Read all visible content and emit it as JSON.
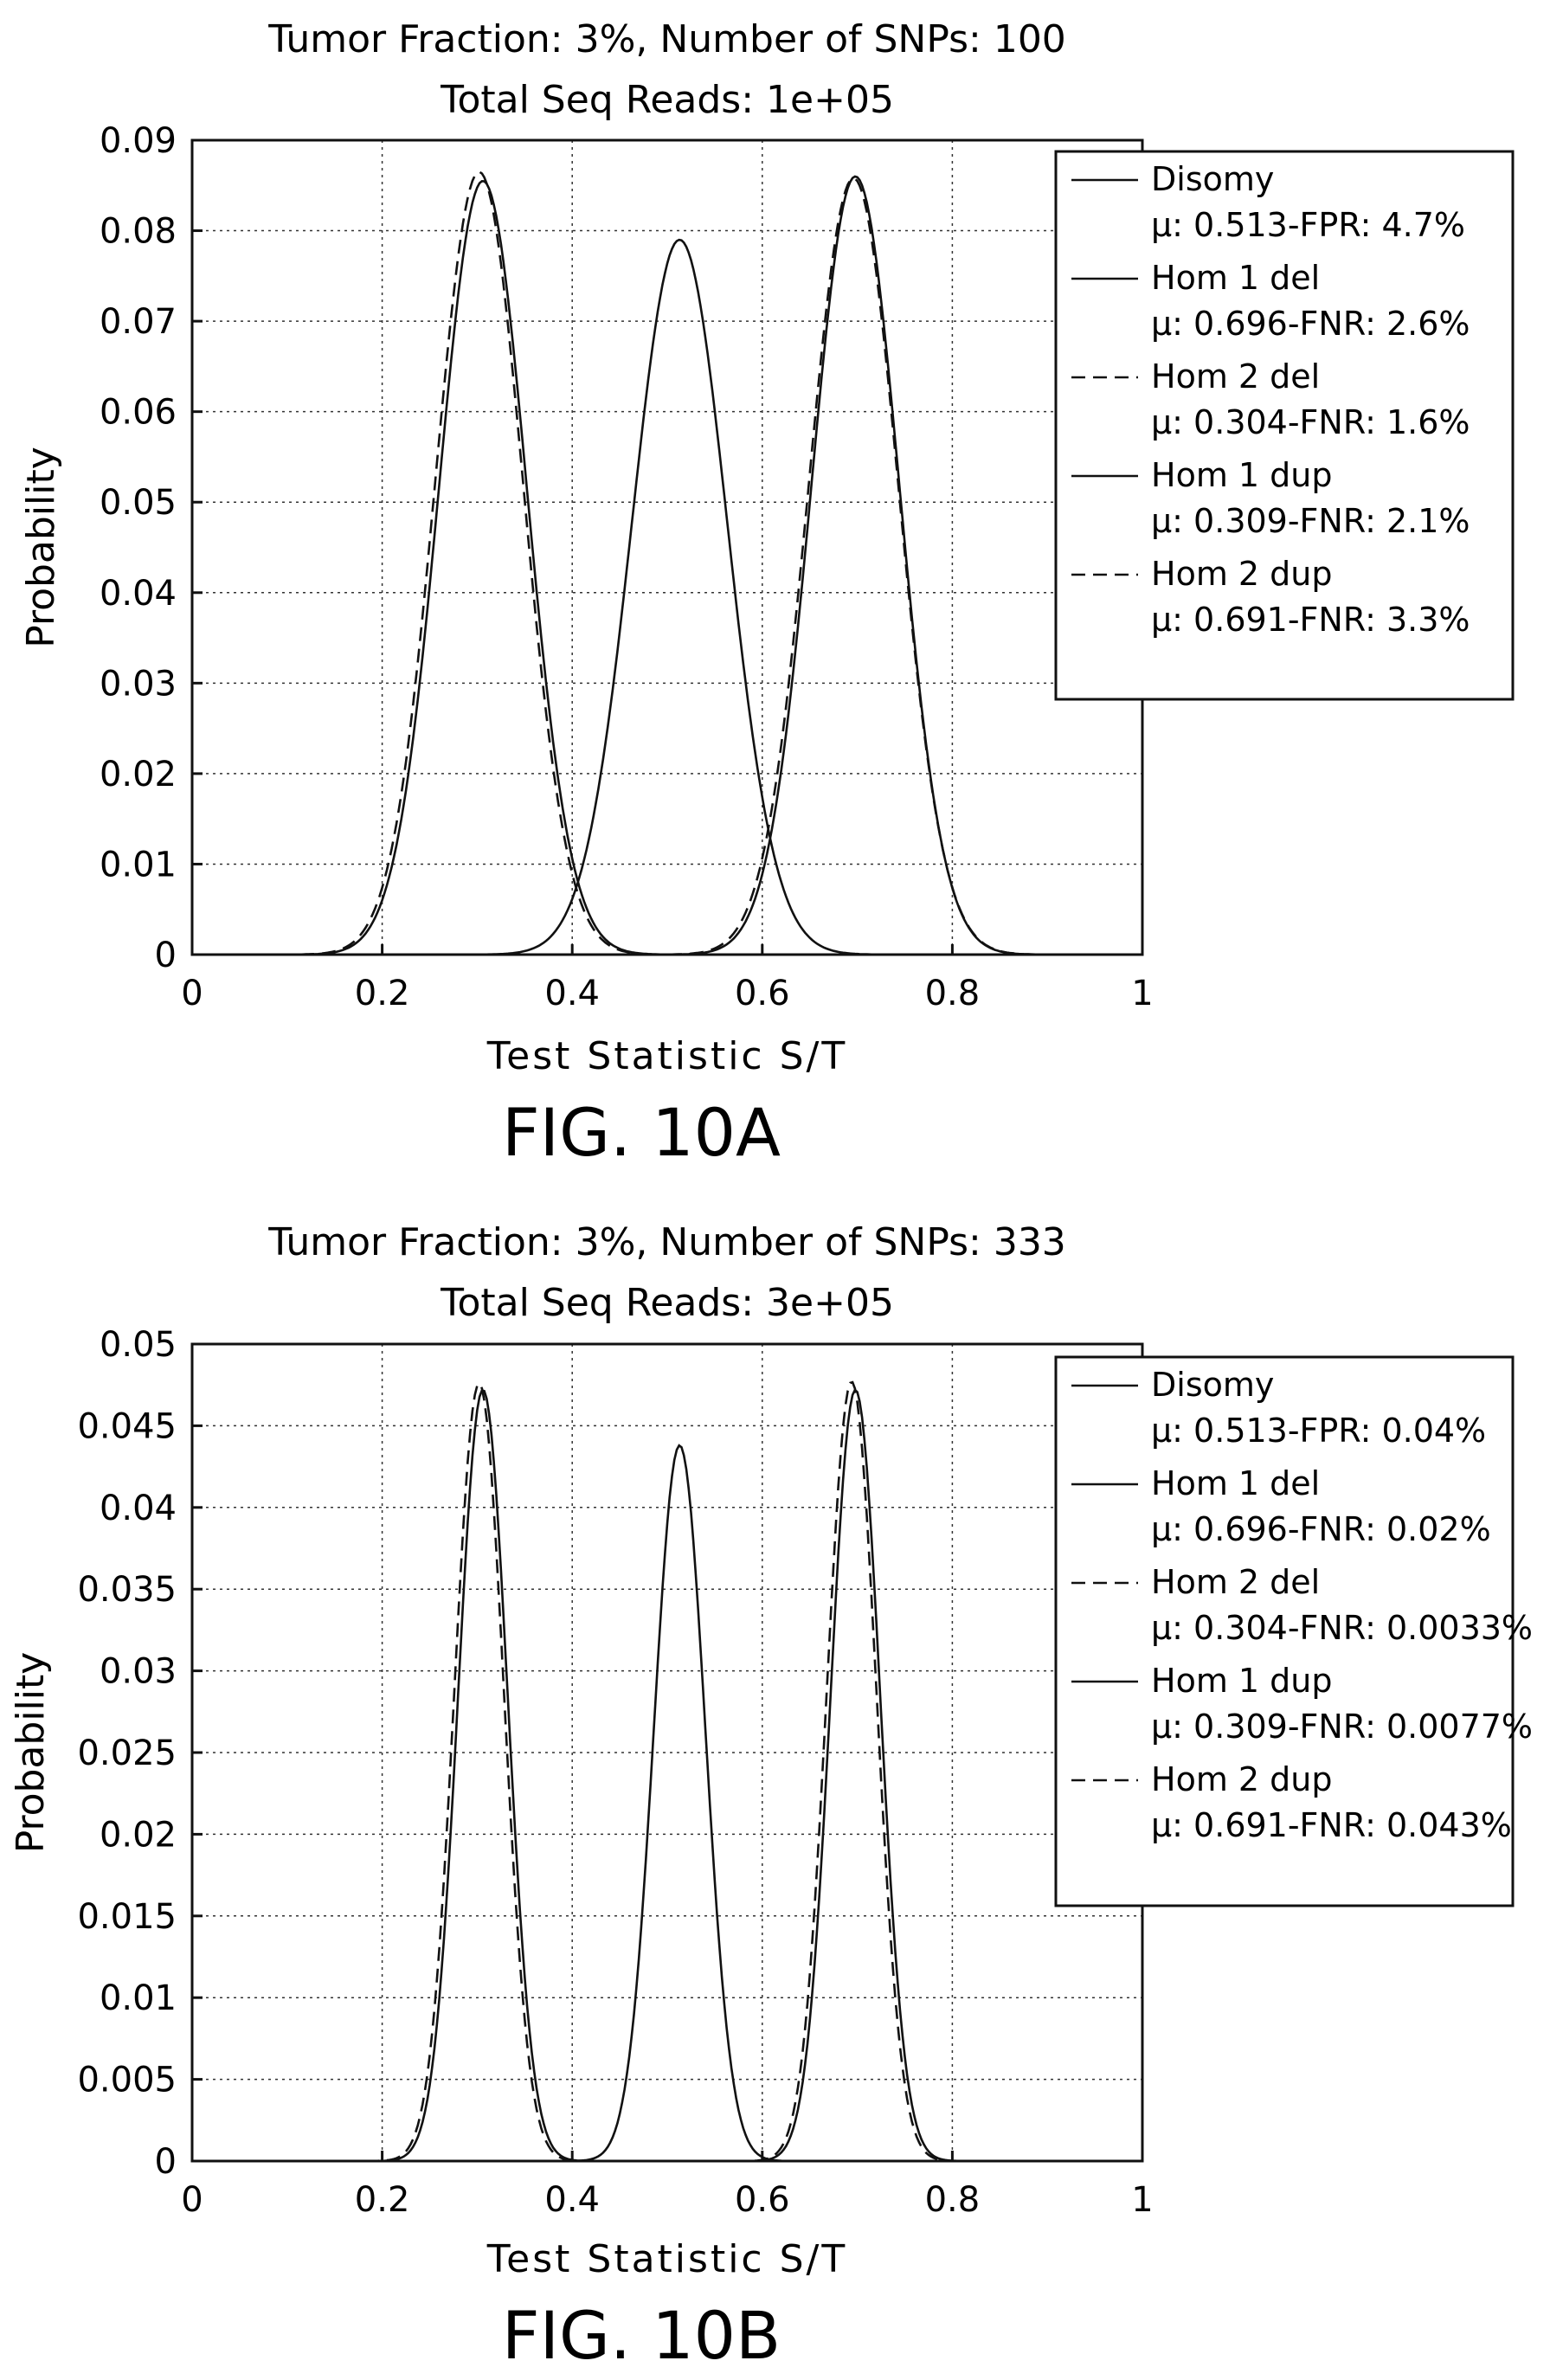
{
  "chart_data": [
    {
      "type": "line",
      "figure_label": "FIG. 10A",
      "title_line1": "Tumor Fraction: 3%, Number of SNPs: 100",
      "title_line2": "Total Seq Reads: 1e+05",
      "xlabel": "Test Statistic S/T",
      "ylabel": "Probability",
      "xlim": [
        0,
        1
      ],
      "ylim": [
        0,
        0.09
      ],
      "xticks": [
        "0",
        "0.2",
        "0.4",
        "0.6",
        "0.8",
        "1"
      ],
      "yticks": [
        "0",
        "0.01",
        "0.02",
        "0.03",
        "0.04",
        "0.05",
        "0.06",
        "0.07",
        "0.08",
        "0.09"
      ],
      "grid": true,
      "legend_position": "top-right",
      "series": [
        {
          "name": "Disomy",
          "detail": "μ: 0.513-FPR: 4.7%",
          "style": "solid",
          "mu": 0.513,
          "peak": 0.079,
          "sigma": 0.05
        },
        {
          "name": "Hom 1 del",
          "detail": "μ: 0.696-FNR: 2.6%",
          "style": "solid",
          "mu": 0.698,
          "peak": 0.086,
          "sigma": 0.046
        },
        {
          "name": "Hom 2 del",
          "detail": "μ: 0.304-FNR: 1.6%",
          "style": "dashed",
          "mu": 0.302,
          "peak": 0.0865,
          "sigma": 0.046
        },
        {
          "name": "Hom 1 dup",
          "detail": "μ: 0.309-FNR: 2.1%",
          "style": "solid",
          "mu": 0.306,
          "peak": 0.0855,
          "sigma": 0.046
        },
        {
          "name": "Hom 2 dup",
          "detail": "μ: 0.691-FNR: 3.3%",
          "style": "dashed",
          "mu": 0.696,
          "peak": 0.0858,
          "sigma": 0.047
        }
      ]
    },
    {
      "type": "line",
      "figure_label": "FIG. 10B",
      "title_line1": "Tumor Fraction: 3%, Number of SNPs: 333",
      "title_line2": "Total Seq Reads: 3e+05",
      "xlabel": "Test Statistic S/T",
      "ylabel": "Probability",
      "xlim": [
        0,
        1
      ],
      "ylim": [
        0,
        0.05
      ],
      "xticks": [
        "0",
        "0.2",
        "0.4",
        "0.6",
        "0.8",
        "1"
      ],
      "yticks": [
        "0",
        "0.005",
        "0.01",
        "0.015",
        "0.02",
        "0.025",
        "0.03",
        "0.035",
        "0.04",
        "0.045",
        "0.05"
      ],
      "grid": true,
      "legend_position": "top-right",
      "series": [
        {
          "name": "Disomy",
          "detail": "μ: 0.513-FPR: 0.04%",
          "style": "solid",
          "mu": 0.513,
          "peak": 0.0438,
          "sigma": 0.027
        },
        {
          "name": "Hom 1 del",
          "detail": "μ: 0.696-FNR: 0.02%",
          "style": "solid",
          "mu": 0.698,
          "peak": 0.0472,
          "sigma": 0.026
        },
        {
          "name": "Hom 2 del",
          "detail": "μ: 0.304-FNR: 0.0033%",
          "style": "dashed",
          "mu": 0.302,
          "peak": 0.0476,
          "sigma": 0.026
        },
        {
          "name": "Hom 1 dup",
          "detail": "μ: 0.309-FNR: 0.0077%",
          "style": "solid",
          "mu": 0.306,
          "peak": 0.0472,
          "sigma": 0.026
        },
        {
          "name": "Hom 2 dup",
          "detail": "μ: 0.691-FNR: 0.043%",
          "style": "dashed",
          "mu": 0.694,
          "peak": 0.0477,
          "sigma": 0.026
        }
      ]
    }
  ]
}
